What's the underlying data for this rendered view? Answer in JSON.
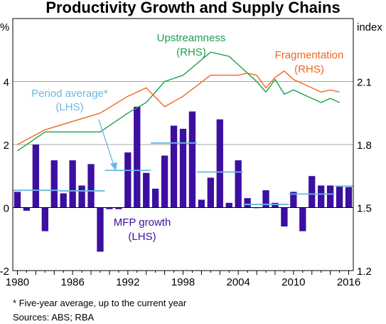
{
  "page": {
    "title": "Productivity Growth and Supply Chains",
    "footnote": "*     Five-year average, up to the current year",
    "sources": "Sources:   ABS; RBA"
  },
  "chart_data": {
    "type": "bar+line",
    "title": "Productivity Growth and Supply Chains",
    "left_axis": {
      "unit": "%",
      "ylim": [
        -2,
        6
      ],
      "ticks": [
        -2,
        0,
        2,
        4
      ]
    },
    "right_axis": {
      "unit": "index",
      "ylim": [
        1.2,
        2.4
      ],
      "ticks": [
        1.2,
        1.5,
        1.8,
        2.1
      ]
    },
    "x_axis": {
      "xlim": [
        1979.5,
        2016.5
      ],
      "tick_labels": [
        "1980",
        "1986",
        "1992",
        "1998",
        "2004",
        "2010",
        "2016"
      ]
    },
    "grid": true,
    "series": [
      {
        "name": "MFP growth",
        "label_lines": [
          "MFP growth",
          "(LHS)"
        ],
        "type": "bar",
        "axis": "left",
        "color": "#3c0fa0",
        "x": [
          1980,
          1981,
          1982,
          1983,
          1984,
          1985,
          1986,
          1987,
          1988,
          1989,
          1990,
          1991,
          1992,
          1993,
          1994,
          1995,
          1996,
          1997,
          1998,
          1999,
          2000,
          2001,
          2002,
          2003,
          2004,
          2005,
          2006,
          2007,
          2008,
          2009,
          2010,
          2011,
          2012,
          2013,
          2014,
          2015,
          2016
        ],
        "values": [
          0.5,
          -0.1,
          2.0,
          -0.75,
          1.5,
          0.45,
          1.5,
          0.7,
          1.38,
          -1.4,
          -0.05,
          -0.05,
          1.75,
          3.2,
          1.1,
          0.6,
          1.65,
          2.6,
          2.5,
          3.05,
          0.25,
          0.95,
          2.8,
          0.15,
          1.5,
          0.3,
          0.0,
          0.55,
          0.15,
          -0.6,
          0.5,
          -0.75,
          1.0,
          0.7,
          0.7,
          0.7,
          0.65
        ]
      },
      {
        "name": "Period average*",
        "label_lines": [
          "Period average*",
          "(LHS)"
        ],
        "type": "step",
        "axis": "left",
        "color": "#6ab8e4",
        "segments": [
          {
            "x": [
              1979.5,
              1984.5
            ],
            "value": 0.55
          },
          {
            "x": [
              1984.5,
              1989.5
            ],
            "value": 0.53
          },
          {
            "x": [
              1989.5,
              1994.5
            ],
            "value": 1.18
          },
          {
            "x": [
              1994.5,
              1999.5
            ],
            "value": 2.05
          },
          {
            "x": [
              1999.5,
              2004.5
            ],
            "value": 1.13
          },
          {
            "x": [
              2004.5,
              2009.5
            ],
            "value": 0.1
          },
          {
            "x": [
              2009.5,
              2014.5
            ],
            "value": 0.43
          },
          {
            "x": [
              2014.5,
              2016.5
            ],
            "value": 0.68
          }
        ]
      },
      {
        "name": "Upstreamness",
        "label_lines": [
          "Upstreamness",
          "(RHS)"
        ],
        "type": "line",
        "axis": "right",
        "color": "#1aa04a",
        "x": [
          1980,
          1983,
          1985,
          1989,
          1992,
          1994,
          1996,
          1998,
          2001,
          2003,
          2004,
          2005,
          2006,
          2007,
          2008,
          2009,
          2010,
          2011,
          2012,
          2013,
          2014,
          2015
        ],
        "values": [
          1.77,
          1.86,
          1.86,
          1.86,
          1.95,
          2.0,
          2.1,
          2.13,
          2.24,
          2.22,
          2.18,
          2.14,
          2.1,
          2.05,
          2.11,
          2.04,
          2.06,
          2.04,
          2.02,
          2.0,
          2.02,
          2.0
        ]
      },
      {
        "name": "Fragmentation",
        "label_lines": [
          "Fragmentation",
          "(RHS)"
        ],
        "type": "line",
        "axis": "right",
        "color": "#f26522",
        "x": [
          1980,
          1983,
          1986,
          1989,
          1992,
          1994,
          1996,
          1998,
          2001,
          2003,
          2004,
          2005,
          2006,
          2007,
          2008,
          2009,
          2010,
          2011,
          2012,
          2013,
          2014,
          2015
        ],
        "values": [
          1.8,
          1.87,
          1.91,
          1.95,
          2.03,
          2.07,
          1.98,
          2.03,
          2.13,
          2.13,
          2.13,
          2.14,
          2.13,
          2.07,
          2.12,
          2.15,
          2.11,
          2.09,
          2.07,
          2.05,
          2.06,
          2.05
        ]
      }
    ]
  }
}
